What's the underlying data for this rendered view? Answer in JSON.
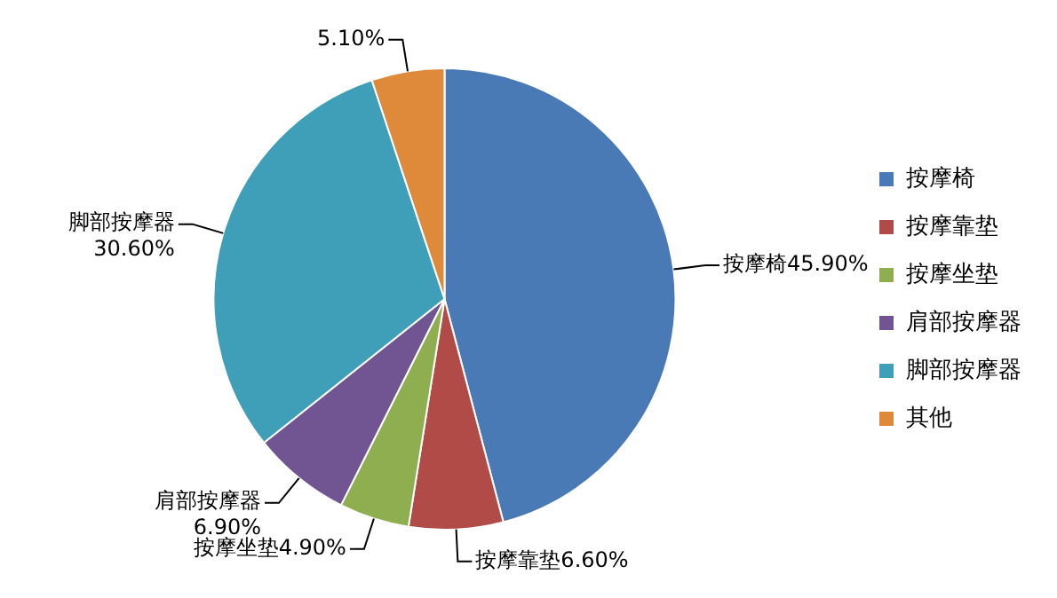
{
  "chart_data": {
    "type": "pie",
    "categories": [
      "按摩椅",
      "按摩靠垫",
      "按摩坐垫",
      "肩部按摩器",
      "脚部按摩器",
      "其他"
    ],
    "values": [
      45.9,
      6.6,
      4.9,
      6.9,
      30.6,
      5.1
    ],
    "colors": [
      "#4a7ab5",
      "#b14b48",
      "#8fae50",
      "#705592",
      "#3f9eb8",
      "#df8a3b"
    ],
    "value_labels": [
      "按摩椅45.90%",
      "按摩靠垫6.60%",
      "按摩坐垫4.90%",
      "肩部按摩器\n6.90%",
      "脚部按摩器\n30.60%",
      "5.10%"
    ],
    "legend": "right"
  }
}
